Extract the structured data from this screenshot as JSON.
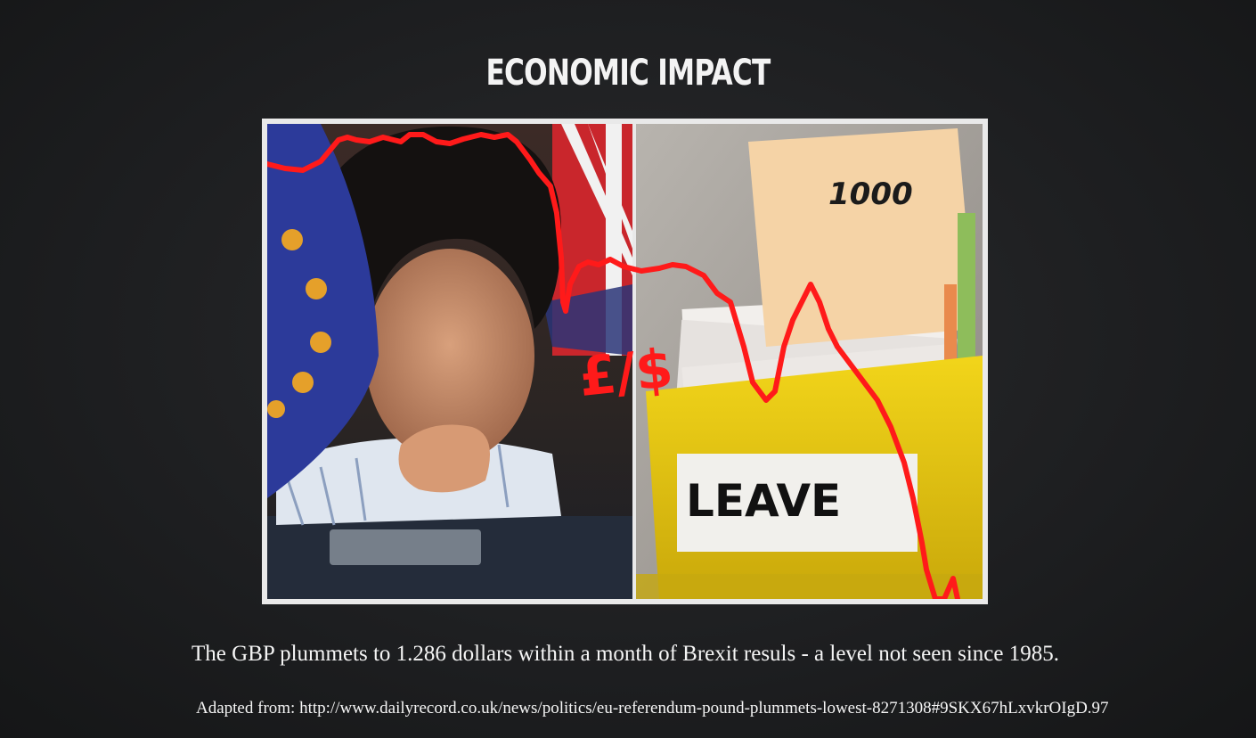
{
  "slide": {
    "title": "ECONOMIC IMPACT",
    "image": {
      "currency_label": "£/$",
      "box_label": "LEAVE",
      "folder_number": "1000",
      "icon": "brexit-pound-dollar-crash-photo-icon",
      "line_color": "#ff1a1a"
    },
    "caption": "The GBP plummets to 1.286 dollars within a month of Brexit resuls - a level not seen since 1985.",
    "source": "Adapted from: http://www.dailyrecord.co.uk/news/politics/eu-referendum-pound-plummets-lowest-8271308#9SKX67hLxvkrOIgD.97"
  }
}
